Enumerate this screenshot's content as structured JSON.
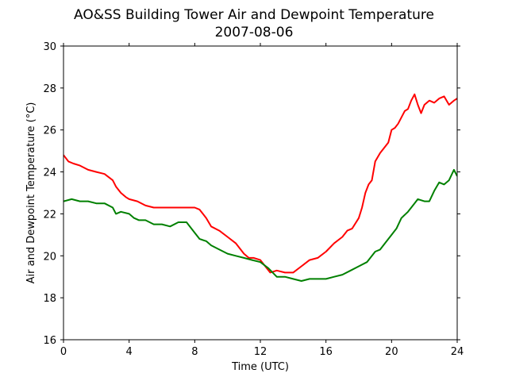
{
  "chart_data": {
    "type": "line",
    "title": "AO&SS Building Tower Air and Dewpoint Temperature",
    "subtitle": "2007-08-06",
    "xlabel": "Time (UTC)",
    "ylabel": "Air and Dewpoint Temperature (°C)",
    "xlim": [
      0,
      24
    ],
    "ylim": [
      16,
      30
    ],
    "xticks": [
      0,
      4,
      8,
      12,
      16,
      20,
      24
    ],
    "yticks": [
      16,
      18,
      20,
      22,
      24,
      26,
      28,
      30
    ],
    "grid": false,
    "legend": "none",
    "series": [
      {
        "color": "#ff0000",
        "x": [
          0,
          0.3,
          0.6,
          1,
          1.5,
          2,
          2.5,
          3,
          3.2,
          3.5,
          3.8,
          4,
          4.5,
          5,
          5.5,
          6,
          6.5,
          7,
          7.5,
          8,
          8.3,
          8.7,
          9,
          9.5,
          10,
          10.5,
          11,
          11.3,
          11.6,
          12,
          12.3,
          12.6,
          13,
          13.5,
          14,
          14.5,
          15,
          15.5,
          16,
          16.5,
          17,
          17.3,
          17.6,
          18,
          18.2,
          18.4,
          18.6,
          18.8,
          19,
          19.3,
          19.6,
          19.8,
          20,
          20.2,
          20.4,
          20.6,
          20.8,
          21,
          21.2,
          21.4,
          21.6,
          21.8,
          22,
          22.3,
          22.6,
          22.9,
          23.2,
          23.5,
          23.8,
          24
        ],
        "y": [
          24.8,
          24.5,
          24.4,
          24.3,
          24.1,
          24.0,
          23.9,
          23.6,
          23.3,
          23.0,
          22.8,
          22.7,
          22.6,
          22.4,
          22.3,
          22.3,
          22.3,
          22.3,
          22.3,
          22.3,
          22.2,
          21.8,
          21.4,
          21.2,
          20.9,
          20.6,
          20.1,
          19.9,
          19.9,
          19.8,
          19.5,
          19.2,
          19.3,
          19.2,
          19.2,
          19.5,
          19.8,
          19.9,
          20.2,
          20.6,
          20.9,
          21.2,
          21.3,
          21.8,
          22.3,
          23.0,
          23.4,
          23.6,
          24.5,
          24.9,
          25.2,
          25.4,
          26.0,
          26.1,
          26.3,
          26.6,
          26.9,
          27.0,
          27.4,
          27.7,
          27.2,
          26.8,
          27.2,
          27.4,
          27.3,
          27.5,
          27.6,
          27.2,
          27.4,
          27.5
        ]
      },
      {
        "color": "#008000",
        "x": [
          0,
          0.5,
          1,
          1.5,
          2,
          2.5,
          3,
          3.2,
          3.5,
          4,
          4.3,
          4.6,
          5,
          5.5,
          6,
          6.5,
          7,
          7.5,
          8,
          8.3,
          8.7,
          9,
          9.5,
          10,
          10.5,
          11,
          11.5,
          12,
          12.5,
          13,
          13.5,
          14,
          14.5,
          15,
          15.5,
          16,
          16.5,
          17,
          17.5,
          18,
          18.5,
          19,
          19.3,
          19.6,
          20,
          20.3,
          20.6,
          21,
          21.3,
          21.6,
          22,
          22.3,
          22.6,
          22.9,
          23.2,
          23.5,
          23.8,
          24
        ],
        "y": [
          22.6,
          22.7,
          22.6,
          22.6,
          22.5,
          22.5,
          22.3,
          22.0,
          22.1,
          22.0,
          21.8,
          21.7,
          21.7,
          21.5,
          21.5,
          21.4,
          21.6,
          21.6,
          21.1,
          20.8,
          20.7,
          20.5,
          20.3,
          20.1,
          20.0,
          19.9,
          19.8,
          19.7,
          19.4,
          19.0,
          19.0,
          18.9,
          18.8,
          18.9,
          18.9,
          18.9,
          19.0,
          19.1,
          19.3,
          19.5,
          19.7,
          20.2,
          20.3,
          20.6,
          21.0,
          21.3,
          21.8,
          22.1,
          22.4,
          22.7,
          22.6,
          22.6,
          23.1,
          23.5,
          23.4,
          23.6,
          24.1,
          23.8
        ]
      }
    ]
  }
}
